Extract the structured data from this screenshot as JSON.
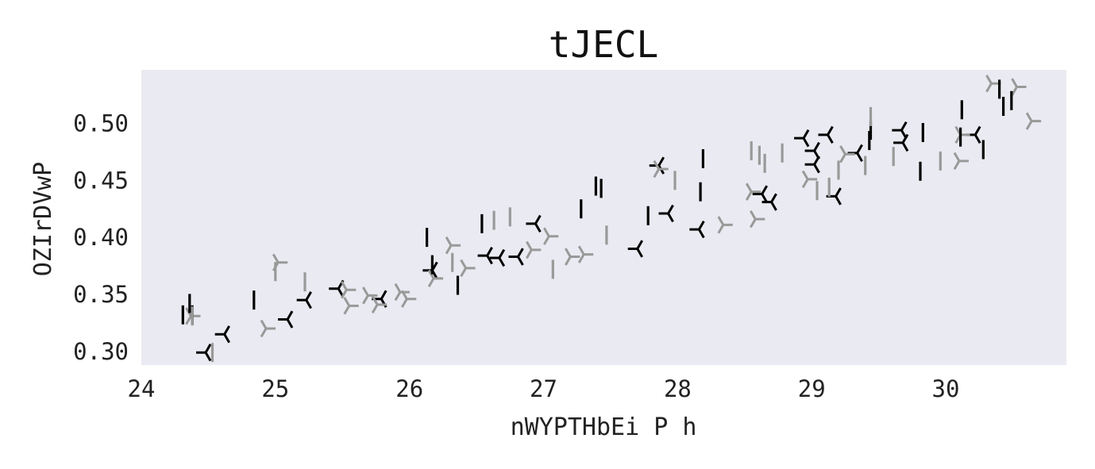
{
  "chart_data": {
    "type": "scatter",
    "title": "tJECL",
    "xlabel": "nWYPTHbEi P h",
    "ylabel": "OZIrDVwP",
    "xlim": [
      24.0,
      30.9
    ],
    "ylim": [
      0.288,
      0.547
    ],
    "x_ticks": [
      24,
      25,
      26,
      27,
      28,
      29,
      30
    ],
    "x_tick_labels": [
      "24",
      "25",
      "26",
      "27",
      "28",
      "29",
      "30"
    ],
    "y_ticks": [
      0.3,
      0.35,
      0.4,
      0.45,
      0.5
    ],
    "y_tick_labels": [
      "0.30",
      "0.35",
      "0.40",
      "0.45",
      "0.50"
    ],
    "grid": false,
    "background": "#eaeaf2",
    "series": [
      {
        "marker": "tri_left",
        "color": "#000000",
        "points": [
          [
            24.48,
            0.299
          ],
          [
            24.62,
            0.315
          ],
          [
            25.09,
            0.328
          ],
          [
            25.23,
            0.345
          ],
          [
            25.47,
            0.355
          ],
          [
            25.79,
            0.346
          ],
          [
            26.17,
            0.371
          ],
          [
            26.58,
            0.384
          ],
          [
            26.67,
            0.382
          ],
          [
            26.81,
            0.383
          ],
          [
            26.94,
            0.412
          ],
          [
            27.7,
            0.39
          ],
          [
            27.86,
            0.463
          ],
          [
            27.93,
            0.421
          ],
          [
            28.16,
            0.407
          ],
          [
            28.63,
            0.438
          ],
          [
            28.7,
            0.431
          ],
          [
            28.94,
            0.487
          ],
          [
            29.02,
            0.476
          ],
          [
            29.02,
            0.464
          ],
          [
            29.12,
            0.49
          ],
          [
            29.18,
            0.436
          ],
          [
            29.34,
            0.474
          ],
          [
            29.67,
            0.494
          ],
          [
            29.68,
            0.483
          ],
          [
            30.22,
            0.49
          ]
        ]
      },
      {
        "marker": "tri_right",
        "color": "#999999",
        "points": [
          [
            24.37,
            0.331
          ],
          [
            24.93,
            0.32
          ],
          [
            25.02,
            0.378
          ],
          [
            25.53,
            0.354
          ],
          [
            25.55,
            0.34
          ],
          [
            25.69,
            0.349
          ],
          [
            25.76,
            0.341
          ],
          [
            25.93,
            0.352
          ],
          [
            25.98,
            0.346
          ],
          [
            26.18,
            0.364
          ],
          [
            26.31,
            0.393
          ],
          [
            26.42,
            0.373
          ],
          [
            26.91,
            0.389
          ],
          [
            27.04,
            0.401
          ],
          [
            27.2,
            0.383
          ],
          [
            27.3,
            0.385
          ],
          [
            27.86,
            0.46
          ],
          [
            28.34,
            0.411
          ],
          [
            28.55,
            0.44
          ],
          [
            28.58,
            0.416
          ],
          [
            28.97,
            0.451
          ],
          [
            29.25,
            0.473
          ],
          [
            30.11,
            0.49
          ],
          [
            30.1,
            0.467
          ],
          [
            30.34,
            0.535
          ],
          [
            30.53,
            0.532
          ],
          [
            30.64,
            0.502
          ]
        ]
      },
      {
        "marker": "vline",
        "color": "#000000",
        "points": [
          [
            24.31,
            0.332
          ],
          [
            24.36,
            0.342
          ],
          [
            24.38,
            0.332
          ],
          [
            24.84,
            0.345
          ],
          [
            26.13,
            0.4
          ],
          [
            26.17,
            0.376
          ],
          [
            26.36,
            0.358
          ],
          [
            26.54,
            0.412
          ],
          [
            27.28,
            0.425
          ],
          [
            27.39,
            0.445
          ],
          [
            27.43,
            0.443
          ],
          [
            27.78,
            0.419
          ],
          [
            28.17,
            0.44
          ],
          [
            28.19,
            0.469
          ],
          [
            29.43,
            0.485
          ],
          [
            29.44,
            0.494
          ],
          [
            29.81,
            0.458
          ],
          [
            29.83,
            0.492
          ],
          [
            30.12,
            0.512
          ],
          [
            30.11,
            0.488
          ],
          [
            30.28,
            0.477
          ],
          [
            30.4,
            0.53
          ],
          [
            30.43,
            0.515
          ],
          [
            30.49,
            0.52
          ]
        ]
      },
      {
        "marker": "vline",
        "color": "#999999",
        "points": [
          [
            24.38,
            0.331
          ],
          [
            24.53,
            0.299
          ],
          [
            25.0,
            0.37
          ],
          [
            25.22,
            0.361
          ],
          [
            26.32,
            0.378
          ],
          [
            26.63,
            0.415
          ],
          [
            26.75,
            0.418
          ],
          [
            27.07,
            0.372
          ],
          [
            27.47,
            0.402
          ],
          [
            27.98,
            0.45
          ],
          [
            28.55,
            0.476
          ],
          [
            28.61,
            0.472
          ],
          [
            28.65,
            0.465
          ],
          [
            28.78,
            0.474
          ],
          [
            29.04,
            0.441
          ],
          [
            29.13,
            0.444
          ],
          [
            29.2,
            0.459
          ],
          [
            29.4,
            0.463
          ],
          [
            29.44,
            0.506
          ],
          [
            29.61,
            0.471
          ],
          [
            29.96,
            0.467
          ]
        ]
      }
    ]
  }
}
